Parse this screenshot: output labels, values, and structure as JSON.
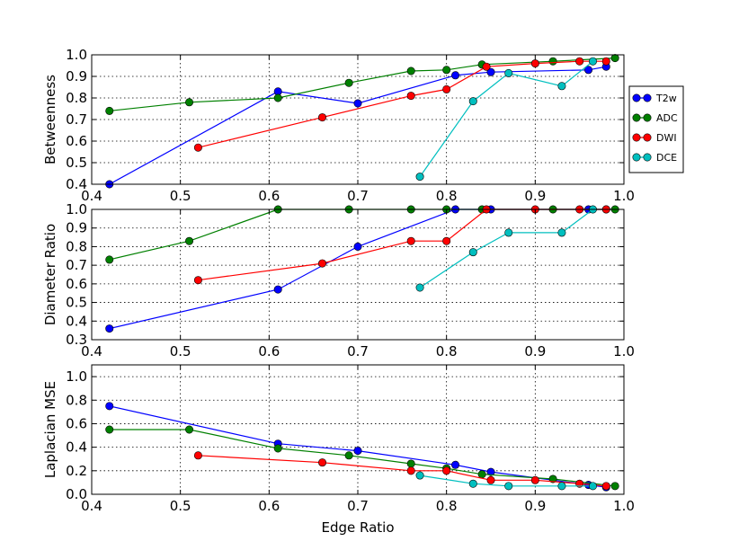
{
  "chart_data": [
    {
      "type": "line",
      "id": "betweenness",
      "title": "",
      "xlabel": "",
      "ylabel": "Betweenness",
      "xlim": [
        0.4,
        1.0
      ],
      "ylim": [
        0.4,
        1.0
      ],
      "xticks": [
        "0.4",
        "0.5",
        "0.6",
        "0.7",
        "0.8",
        "0.9",
        "1.0"
      ],
      "yticks": [
        "0.4",
        "0.5",
        "0.6",
        "0.7",
        "0.8",
        "0.9",
        "1.0"
      ],
      "grid": true,
      "legend": "right-outside",
      "series": [
        {
          "name": "T2w",
          "color": "#0000ff",
          "x": [
            0.42,
            0.61,
            0.7,
            0.81,
            0.85,
            0.96,
            0.98
          ],
          "y": [
            0.4,
            0.83,
            0.775,
            0.905,
            0.92,
            0.93,
            0.945
          ]
        },
        {
          "name": "ADC",
          "color": "#008000",
          "x": [
            0.42,
            0.51,
            0.61,
            0.69,
            0.76,
            0.8,
            0.84,
            0.92,
            0.99
          ],
          "y": [
            0.74,
            0.78,
            0.8,
            0.87,
            0.925,
            0.93,
            0.955,
            0.97,
            0.985
          ]
        },
        {
          "name": "DWI",
          "color": "#ff0000",
          "x": [
            0.52,
            0.66,
            0.76,
            0.8,
            0.845,
            0.9,
            0.95,
            0.98
          ],
          "y": [
            0.57,
            0.71,
            0.81,
            0.84,
            0.945,
            0.96,
            0.97,
            0.97
          ]
        },
        {
          "name": "DCE",
          "color": "#00bfbf",
          "x": [
            0.77,
            0.83,
            0.87,
            0.93,
            0.965
          ],
          "y": [
            0.435,
            0.785,
            0.915,
            0.855,
            0.97
          ]
        }
      ]
    },
    {
      "type": "line",
      "id": "diameter",
      "title": "",
      "xlabel": "",
      "ylabel": "Diameter Ratio",
      "xlim": [
        0.4,
        1.0
      ],
      "ylim": [
        0.3,
        1.0
      ],
      "xticks": [
        "0.4",
        "0.5",
        "0.6",
        "0.7",
        "0.8",
        "0.9",
        "1.0"
      ],
      "yticks": [
        "0.3",
        "0.4",
        "0.5",
        "0.6",
        "0.7",
        "0.8",
        "0.9",
        "1.0"
      ],
      "grid": true,
      "series": [
        {
          "name": "T2w",
          "color": "#0000ff",
          "x": [
            0.42,
            0.61,
            0.7,
            0.81,
            0.85,
            0.96,
            0.98
          ],
          "y": [
            0.36,
            0.57,
            0.8,
            1.0,
            1.0,
            1.0,
            1.0
          ]
        },
        {
          "name": "ADC",
          "color": "#008000",
          "x": [
            0.42,
            0.51,
            0.61,
            0.69,
            0.76,
            0.8,
            0.84,
            0.92,
            0.99
          ],
          "y": [
            0.73,
            0.83,
            1.0,
            1.0,
            1.0,
            1.0,
            1.0,
            1.0,
            1.0
          ]
        },
        {
          "name": "DWI",
          "color": "#ff0000",
          "x": [
            0.52,
            0.66,
            0.76,
            0.8,
            0.845,
            0.9,
            0.95,
            0.98
          ],
          "y": [
            0.62,
            0.71,
            0.83,
            0.83,
            1.0,
            1.0,
            1.0,
            1.0
          ]
        },
        {
          "name": "DCE",
          "color": "#00bfbf",
          "x": [
            0.77,
            0.83,
            0.87,
            0.93,
            0.965
          ],
          "y": [
            0.58,
            0.77,
            0.875,
            0.875,
            1.0
          ]
        }
      ]
    },
    {
      "type": "line",
      "id": "laplacian",
      "title": "",
      "xlabel": "Edge Ratio",
      "ylabel": "Laplacian MSE",
      "xlim": [
        0.4,
        1.0
      ],
      "ylim": [
        0.0,
        1.1
      ],
      "xticks": [
        "0.4",
        "0.5",
        "0.6",
        "0.7",
        "0.8",
        "0.9",
        "1.0"
      ],
      "yticks": [
        "0.0",
        "0.2",
        "0.4",
        "0.6",
        "0.8",
        "1.0"
      ],
      "grid": true,
      "series": [
        {
          "name": "T2w",
          "color": "#0000ff",
          "x": [
            0.42,
            0.61,
            0.7,
            0.81,
            0.85,
            0.96,
            0.98
          ],
          "y": [
            0.75,
            0.43,
            0.37,
            0.25,
            0.19,
            0.08,
            0.06
          ]
        },
        {
          "name": "ADC",
          "color": "#008000",
          "x": [
            0.42,
            0.51,
            0.61,
            0.69,
            0.76,
            0.8,
            0.84,
            0.92,
            0.99
          ],
          "y": [
            0.55,
            0.55,
            0.39,
            0.33,
            0.26,
            0.22,
            0.17,
            0.13,
            0.07
          ]
        },
        {
          "name": "DWI",
          "color": "#ff0000",
          "x": [
            0.52,
            0.66,
            0.76,
            0.8,
            0.85,
            0.9,
            0.95,
            0.98
          ],
          "y": [
            0.33,
            0.27,
            0.2,
            0.2,
            0.12,
            0.12,
            0.09,
            0.07
          ]
        },
        {
          "name": "DCE",
          "color": "#00bfbf",
          "x": [
            0.77,
            0.83,
            0.87,
            0.93,
            0.965
          ],
          "y": [
            0.16,
            0.09,
            0.07,
            0.07,
            0.07
          ]
        }
      ]
    }
  ]
}
